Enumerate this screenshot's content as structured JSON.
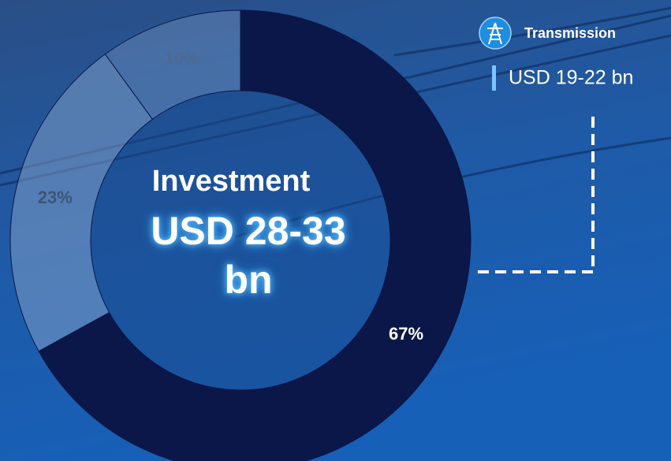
{
  "chart_data": {
    "type": "pie",
    "values": [
      67,
      23,
      10
    ],
    "value_labels": [
      "67%",
      "23%",
      "10%"
    ],
    "colors": [
      "#0b1748",
      "#7d9cc4",
      "#7d9cc4"
    ],
    "center_title": "Investment",
    "center_value": "USD 28-33 bn",
    "annotation": {
      "title": "Transmission",
      "text": "USD 19-22 bn"
    }
  }
}
